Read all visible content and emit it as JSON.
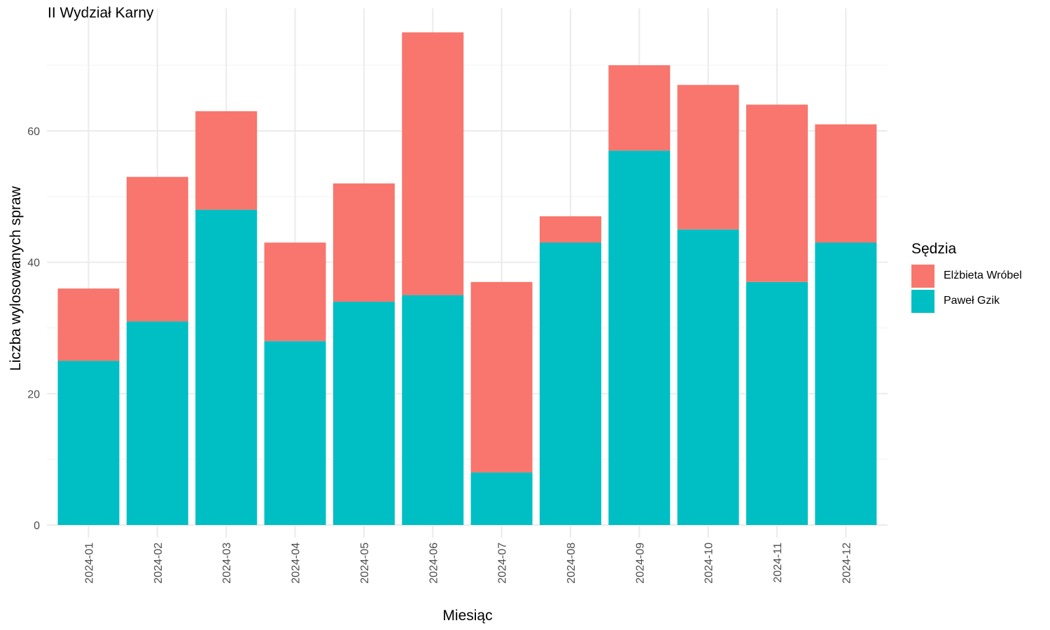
{
  "chart_data": {
    "type": "bar",
    "stacked": true,
    "title": "II Wydział Karny",
    "xlabel": "Miesiąc",
    "ylabel": "Liczba wylosowanych spraw",
    "legend_title": "Sędzia",
    "legend_position": "right",
    "grid": true,
    "ylim": [
      0,
      76
    ],
    "yticks": [
      0,
      20,
      40,
      60
    ],
    "categories": [
      "2024-01",
      "2024-02",
      "2024-03",
      "2024-04",
      "2024-05",
      "2024-06",
      "2024-07",
      "2024-08",
      "2024-09",
      "2024-10",
      "2024-11",
      "2024-12"
    ],
    "series": [
      {
        "name": "Paweł Gzik",
        "color": "#00BFC4",
        "values": [
          25,
          31,
          48,
          28,
          34,
          35,
          8,
          43,
          57,
          45,
          37,
          43
        ]
      },
      {
        "name": "Elżbieta Wróbel",
        "color": "#F8766D",
        "values": [
          11,
          22,
          15,
          15,
          18,
          40,
          29,
          4,
          13,
          22,
          27,
          18
        ]
      }
    ],
    "legend_order": [
      "Elżbieta Wróbel",
      "Paweł Gzik"
    ]
  }
}
